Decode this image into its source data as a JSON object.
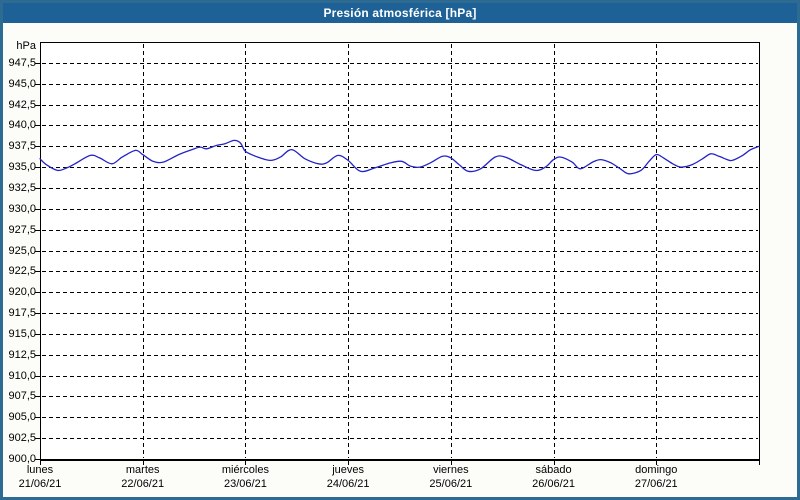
{
  "window": {
    "title": "Presión atmosférica [hPa]"
  },
  "colors": {
    "frame": "#2e6b92",
    "titlebar_bg": "#1d6196",
    "titlebar_text": "#ffffff",
    "content_bg": "#fcfdf9",
    "plot_bg": "#ffffff",
    "axis": "#000000",
    "grid": "#000000",
    "label_text": "#000000",
    "series_line": "#2323c8"
  },
  "chart_data": {
    "type": "line",
    "title": "Presión atmosférica [hPa]",
    "xlabel": "",
    "ylabel": "hPa",
    "ylim": [
      900,
      950
    ],
    "y_tick_step": 2.5,
    "y_tick_values": [
      947.5,
      945.0,
      942.5,
      940.0,
      937.5,
      935.0,
      932.5,
      930.0,
      927.5,
      925.0,
      922.5,
      920.0,
      917.5,
      915.0,
      912.5,
      910.0,
      907.5,
      905.0,
      902.5,
      900.0
    ],
    "y_tick_labels": [
      "947,5",
      "945,0",
      "942,5",
      "940,0",
      "937,5",
      "935,0",
      "932,5",
      "930,0",
      "927,5",
      "925,0",
      "922,5",
      "920,0",
      "917,5",
      "915,0",
      "912,5",
      "910,0",
      "907,5",
      "905,0",
      "902,5",
      "900,0"
    ],
    "grid": "dashed horizontal every 2.5 hPa, dashed vertical at day boundaries",
    "legend": "none",
    "x_range_days": 7,
    "x_days": [
      {
        "name": "lunes",
        "date": "21/06/21"
      },
      {
        "name": "martes",
        "date": "22/06/21"
      },
      {
        "name": "miércoles",
        "date": "23/06/21"
      },
      {
        "name": "jueves",
        "date": "24/06/21"
      },
      {
        "name": "viernes",
        "date": "25/06/21"
      },
      {
        "name": "sábado",
        "date": "26/06/21"
      },
      {
        "name": "domingo",
        "date": "27/06/21"
      }
    ],
    "series": [
      {
        "name": "Presión atmosférica",
        "units": "hPa",
        "x_units": "days since 21/06/21 00:00",
        "points": [
          [
            0.0,
            936.0
          ],
          [
            0.06,
            935.3
          ],
          [
            0.17,
            934.6
          ],
          [
            0.26,
            934.9
          ],
          [
            0.34,
            935.4
          ],
          [
            0.49,
            936.4
          ],
          [
            0.58,
            936.1
          ],
          [
            0.7,
            935.4
          ],
          [
            0.8,
            936.2
          ],
          [
            0.93,
            937.0
          ],
          [
            1.0,
            936.5
          ],
          [
            1.1,
            935.7
          ],
          [
            1.2,
            935.6
          ],
          [
            1.35,
            936.5
          ],
          [
            1.48,
            937.1
          ],
          [
            1.56,
            937.4
          ],
          [
            1.62,
            937.2
          ],
          [
            1.72,
            937.6
          ],
          [
            1.8,
            937.8
          ],
          [
            1.89,
            938.2
          ],
          [
            1.95,
            937.9
          ],
          [
            2.0,
            936.9
          ],
          [
            2.1,
            936.3
          ],
          [
            2.24,
            935.8
          ],
          [
            2.34,
            936.2
          ],
          [
            2.45,
            937.1
          ],
          [
            2.58,
            936.0
          ],
          [
            2.71,
            935.4
          ],
          [
            2.79,
            935.5
          ],
          [
            2.9,
            936.4
          ],
          [
            3.0,
            935.8
          ],
          [
            3.12,
            934.5
          ],
          [
            3.26,
            934.9
          ],
          [
            3.41,
            935.5
          ],
          [
            3.52,
            935.7
          ],
          [
            3.61,
            935.1
          ],
          [
            3.7,
            935.0
          ],
          [
            3.8,
            935.5
          ],
          [
            3.92,
            936.3
          ],
          [
            4.0,
            936.1
          ],
          [
            4.08,
            935.3
          ],
          [
            4.17,
            934.5
          ],
          [
            4.29,
            934.8
          ],
          [
            4.43,
            936.2
          ],
          [
            4.53,
            936.2
          ],
          [
            4.68,
            935.3
          ],
          [
            4.82,
            934.6
          ],
          [
            4.92,
            935.0
          ],
          [
            5.0,
            935.9
          ],
          [
            5.07,
            936.2
          ],
          [
            5.18,
            935.6
          ],
          [
            5.26,
            934.8
          ],
          [
            5.38,
            935.6
          ],
          [
            5.46,
            935.9
          ],
          [
            5.56,
            935.5
          ],
          [
            5.65,
            934.8
          ],
          [
            5.73,
            934.2
          ],
          [
            5.85,
            934.6
          ],
          [
            5.93,
            935.7
          ],
          [
            6.0,
            936.5
          ],
          [
            6.07,
            936.1
          ],
          [
            6.16,
            935.4
          ],
          [
            6.24,
            935.0
          ],
          [
            6.35,
            935.3
          ],
          [
            6.45,
            936.0
          ],
          [
            6.53,
            936.6
          ],
          [
            6.61,
            936.3
          ],
          [
            6.69,
            935.9
          ],
          [
            6.74,
            935.8
          ],
          [
            6.84,
            936.4
          ],
          [
            6.92,
            937.1
          ],
          [
            7.0,
            937.5
          ]
        ]
      }
    ]
  }
}
